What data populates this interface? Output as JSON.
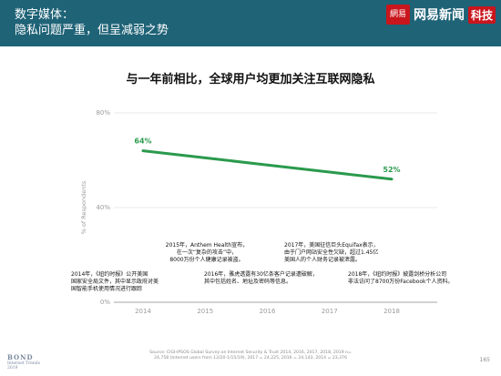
{
  "header": {
    "title_line1": "数字媒体：",
    "title_line2": "隐私问题严重，但呈减弱之势",
    "logo_seal_text": "網易",
    "logo_name": "网易新闻",
    "logo_tag": "科技",
    "bg_color": "#1f6377",
    "accent_color": "#c9161d"
  },
  "chart_data": {
    "type": "line",
    "title": "与一年前相比，全球用户均更加关注互联网隐私",
    "ylabel": "% of Respondents",
    "xlabel": "",
    "x": [
      "2014",
      "2015",
      "2016",
      "2017",
      "2018"
    ],
    "series": [
      {
        "values": [
          64,
          61,
          58,
          55,
          52
        ],
        "color": "#2a9a4d"
      }
    ],
    "ylim": [
      0,
      80
    ],
    "yticks": [
      "0%",
      "40%",
      "80%"
    ],
    "data_labels": [
      {
        "x": "2014",
        "text": "64%"
      },
      {
        "x": "2018",
        "text": "52%"
      }
    ],
    "grid": "horizontal",
    "annotations": [
      {
        "id": "2014",
        "lines": [
          "2014年，《纽约时报》公开美国",
          "国家安全局文件，其中显示政府对美",
          "国智能手机使用情况进行跟踪"
        ]
      },
      {
        "id": "2015",
        "lines": [
          "2015年，Anthem Health宣布，",
          "在一次“复杂的攻击”中，",
          "8000万份个人健康记录被盗。"
        ]
      },
      {
        "id": "2016",
        "lines": [
          "2016年，雅虎透露有30亿条客户记录遭破解，",
          "其中包括姓名、地址及密码等信息。"
        ]
      },
      {
        "id": "2017",
        "lines": [
          "2017年，美国征信巨头Equifax表示，",
          "由于门户网站安全性欠缺，超过1.45亿",
          "美国人的个人财务记录被泄露。"
        ]
      },
      {
        "id": "2018",
        "lines": [
          "2018年，《纽约时报》披露剑桥分析公司",
          "非法访问了8700万份Facebook个人资料。"
        ]
      }
    ]
  },
  "footer": {
    "source_line1": "Source: CIGI-IPSOS Global Survey on Internet Security & Trust 2014, 2016, 2017, 2018, 2019 n=",
    "source_line2": "24,758 (Internet users from 12/20-1/15/19), 2017 = 24,225, 2016 = 24,143, 2014 = 23,376",
    "page_number": "165",
    "bond_name": "BOND",
    "bond_sub1": "Internet Trends",
    "bond_sub2": "2019"
  }
}
